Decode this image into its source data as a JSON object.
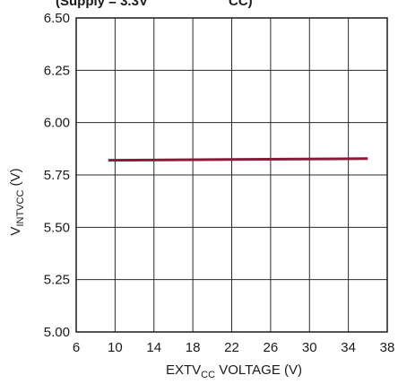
{
  "title_fragment": "(Supply = 3.3V",
  "title_fragment_end": "CC)",
  "chart_data": {
    "type": "line",
    "xlabel": {
      "main": "EXTV",
      "sub": "CC",
      "rest": " VOLTAGE (V)"
    },
    "ylabel": {
      "main": "V",
      "sub": "INTVCC",
      "rest": " (V)"
    },
    "xlim": [
      6,
      38
    ],
    "ylim": [
      5.0,
      6.5
    ],
    "x_ticks": [
      6,
      10,
      14,
      18,
      22,
      26,
      30,
      34,
      38
    ],
    "y_ticks": [
      5.0,
      5.25,
      5.5,
      5.75,
      6.0,
      6.25,
      6.5
    ],
    "x_tick_labels": [
      "6",
      "10",
      "14",
      "18",
      "22",
      "26",
      "30",
      "34",
      "38"
    ],
    "y_tick_labels": [
      "5.00",
      "5.25",
      "5.50",
      "5.75",
      "6.00",
      "6.25",
      "6.50"
    ],
    "grid": true,
    "series": [
      {
        "color": "#8b1a3a",
        "x": [
          9.3,
          36
        ],
        "y": [
          5.82,
          5.828
        ]
      }
    ]
  }
}
